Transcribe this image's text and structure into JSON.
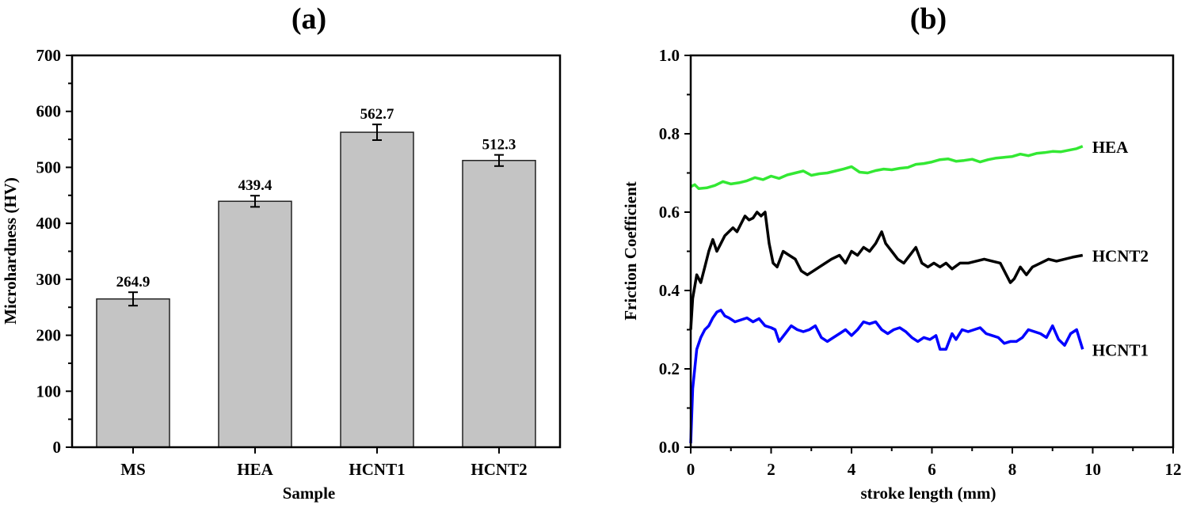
{
  "chart_data": [
    {
      "panel": "(a)",
      "type": "bar",
      "title": "(a)",
      "xlabel": "Sample",
      "ylabel": "Microhardness (HV)",
      "categories": [
        "MS",
        "HEA",
        "HCNT1",
        "HCNT2"
      ],
      "values": [
        264.9,
        439.4,
        562.7,
        512.3
      ],
      "value_labels": [
        "264.9",
        "439.4",
        "562.7",
        "512.3"
      ],
      "error": [
        12,
        10,
        14,
        10
      ],
      "ylim": [
        0,
        700
      ],
      "yticks": [
        0,
        100,
        200,
        300,
        400,
        500,
        600,
        700
      ],
      "bar_color": "#c4c4c4",
      "grid": false
    },
    {
      "panel": "(b)",
      "type": "line",
      "title": "(b)",
      "xlabel": "stroke length (mm)",
      "ylabel": "Friction Coefficient",
      "xlim": [
        0,
        12
      ],
      "ylim": [
        0.0,
        1.0
      ],
      "xticks": [
        0,
        2,
        4,
        6,
        8,
        10,
        12
      ],
      "yticks": [
        "0.0",
        "0.2",
        "0.4",
        "0.6",
        "0.8",
        "1.0"
      ],
      "grid": false,
      "series": [
        {
          "name": "HEA",
          "color": "#33e833",
          "x": [
            0,
            0.1,
            0.2,
            0.4,
            0.6,
            0.8,
            1.0,
            1.2,
            1.4,
            1.6,
            1.8,
            2.0,
            2.2,
            2.4,
            2.6,
            2.8,
            3.0,
            3.2,
            3.4,
            3.6,
            3.8,
            4.0,
            4.2,
            4.4,
            4.6,
            4.8,
            5.0,
            5.2,
            5.4,
            5.6,
            5.8,
            6.0,
            6.2,
            6.4,
            6.6,
            6.8,
            7.0,
            7.2,
            7.4,
            7.6,
            7.8,
            8.0,
            8.2,
            8.4,
            8.6,
            8.8,
            9.0,
            9.2,
            9.4,
            9.6,
            9.75
          ],
          "y": [
            0.665,
            0.67,
            0.66,
            0.662,
            0.668,
            0.678,
            0.672,
            0.675,
            0.68,
            0.688,
            0.683,
            0.692,
            0.686,
            0.695,
            0.7,
            0.705,
            0.694,
            0.698,
            0.7,
            0.705,
            0.71,
            0.716,
            0.702,
            0.7,
            0.706,
            0.71,
            0.708,
            0.712,
            0.714,
            0.722,
            0.724,
            0.728,
            0.734,
            0.736,
            0.73,
            0.732,
            0.735,
            0.728,
            0.734,
            0.738,
            0.74,
            0.742,
            0.748,
            0.744,
            0.75,
            0.752,
            0.755,
            0.754,
            0.758,
            0.762,
            0.768
          ]
        },
        {
          "name": "HCNT2",
          "color": "#000000",
          "x": [
            0,
            0.05,
            0.15,
            0.25,
            0.35,
            0.45,
            0.55,
            0.65,
            0.75,
            0.85,
            0.95,
            1.05,
            1.15,
            1.25,
            1.35,
            1.45,
            1.55,
            1.65,
            1.75,
            1.85,
            1.95,
            2.05,
            2.15,
            2.3,
            2.45,
            2.6,
            2.75,
            2.9,
            3.05,
            3.2,
            3.35,
            3.5,
            3.7,
            3.85,
            4.0,
            4.15,
            4.3,
            4.45,
            4.6,
            4.75,
            4.85,
            5.0,
            5.15,
            5.3,
            5.45,
            5.6,
            5.75,
            5.9,
            6.05,
            6.2,
            6.35,
            6.5,
            6.7,
            6.9,
            7.1,
            7.3,
            7.5,
            7.7,
            7.85,
            7.95,
            8.05,
            8.2,
            8.35,
            8.5,
            8.7,
            8.9,
            9.1,
            9.3,
            9.5,
            9.75
          ],
          "y": [
            0.3,
            0.38,
            0.44,
            0.42,
            0.46,
            0.5,
            0.53,
            0.5,
            0.52,
            0.54,
            0.55,
            0.56,
            0.55,
            0.57,
            0.59,
            0.58,
            0.585,
            0.6,
            0.59,
            0.6,
            0.52,
            0.47,
            0.46,
            0.5,
            0.49,
            0.48,
            0.45,
            0.44,
            0.45,
            0.46,
            0.47,
            0.48,
            0.49,
            0.47,
            0.5,
            0.49,
            0.51,
            0.5,
            0.52,
            0.55,
            0.52,
            0.5,
            0.48,
            0.47,
            0.49,
            0.51,
            0.47,
            0.46,
            0.47,
            0.46,
            0.47,
            0.455,
            0.47,
            0.47,
            0.475,
            0.48,
            0.475,
            0.47,
            0.44,
            0.42,
            0.43,
            0.46,
            0.44,
            0.46,
            0.47,
            0.48,
            0.475,
            0.48,
            0.485,
            0.49
          ]
        },
        {
          "name": "HCNT1",
          "color": "#0000ff",
          "x": [
            0,
            0.05,
            0.15,
            0.25,
            0.35,
            0.45,
            0.55,
            0.65,
            0.75,
            0.85,
            0.95,
            1.1,
            1.25,
            1.4,
            1.55,
            1.7,
            1.85,
            2.0,
            2.1,
            2.2,
            2.35,
            2.5,
            2.65,
            2.8,
            2.95,
            3.1,
            3.25,
            3.4,
            3.55,
            3.7,
            3.85,
            4.0,
            4.15,
            4.3,
            4.45,
            4.6,
            4.75,
            4.9,
            5.05,
            5.2,
            5.35,
            5.5,
            5.65,
            5.8,
            5.95,
            6.1,
            6.2,
            6.35,
            6.5,
            6.6,
            6.75,
            6.9,
            7.05,
            7.2,
            7.35,
            7.5,
            7.65,
            7.8,
            7.95,
            8.1,
            8.25,
            8.4,
            8.55,
            8.7,
            8.85,
            9.0,
            9.15,
            9.3,
            9.45,
            9.6,
            9.75
          ],
          "y": [
            0.01,
            0.15,
            0.25,
            0.28,
            0.3,
            0.31,
            0.33,
            0.345,
            0.35,
            0.335,
            0.33,
            0.32,
            0.325,
            0.33,
            0.32,
            0.328,
            0.31,
            0.305,
            0.3,
            0.27,
            0.29,
            0.31,
            0.3,
            0.295,
            0.3,
            0.31,
            0.28,
            0.27,
            0.28,
            0.29,
            0.3,
            0.285,
            0.3,
            0.32,
            0.315,
            0.32,
            0.3,
            0.29,
            0.3,
            0.305,
            0.295,
            0.28,
            0.27,
            0.28,
            0.275,
            0.285,
            0.25,
            0.25,
            0.29,
            0.275,
            0.3,
            0.295,
            0.3,
            0.305,
            0.29,
            0.285,
            0.28,
            0.265,
            0.27,
            0.27,
            0.28,
            0.3,
            0.295,
            0.29,
            0.28,
            0.31,
            0.275,
            0.26,
            0.29,
            0.3,
            0.25
          ]
        }
      ]
    }
  ]
}
